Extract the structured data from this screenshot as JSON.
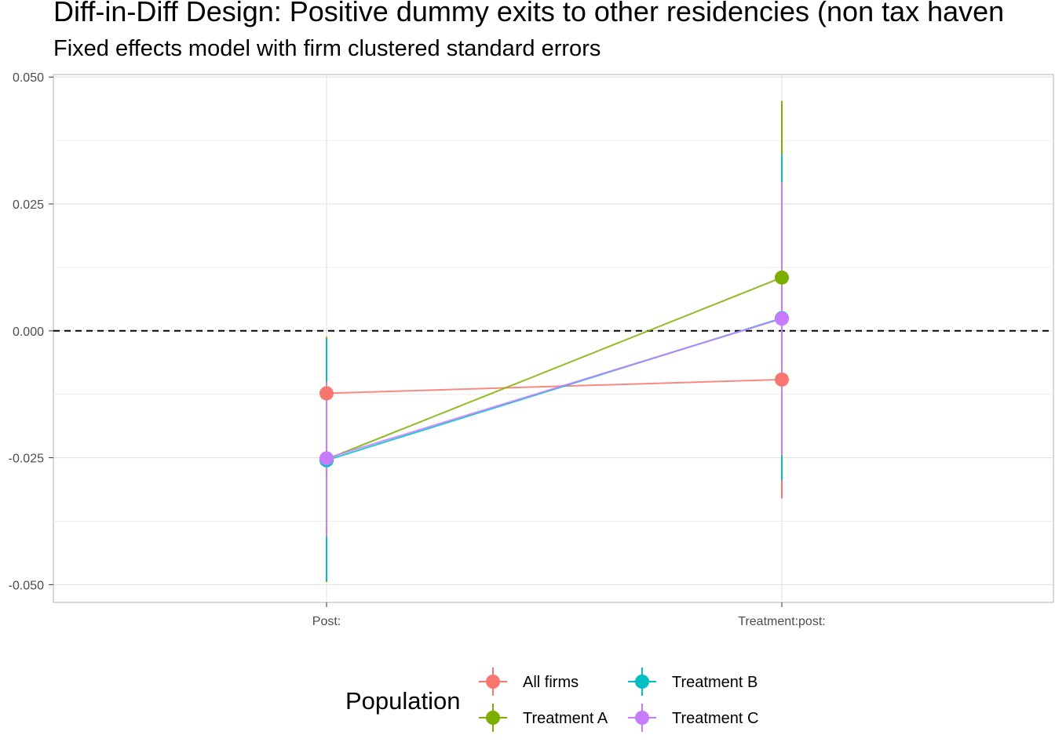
{
  "chart_data": {
    "type": "scatter",
    "title": "Diff-in-Diff Design: Positive dummy exits to other residencies (non tax haven",
    "subtitle": "Fixed effects model with firm clustered standard errors",
    "xlabel": "",
    "ylabel": "",
    "categories": [
      "Post:",
      "Treatment:post:"
    ],
    "ylim": [
      -0.0535,
      0.0505
    ],
    "yticks": [
      0.05,
      0.025,
      0.0,
      -0.025,
      -0.05
    ],
    "ytick_labels": [
      "0.050",
      "0.025",
      "0.000",
      "-0.025",
      "-0.050"
    ],
    "reference_line": {
      "y": 0.0,
      "style": "dashed"
    },
    "grid": true,
    "legend": {
      "title": "Population",
      "position": "bottom"
    },
    "series": [
      {
        "name": "All firms",
        "color": "#F8766D",
        "values": [
          -0.0123,
          -0.0096
        ],
        "lower": [
          -0.0225,
          -0.033
        ],
        "upper": [
          -0.0022,
          0.0138
        ]
      },
      {
        "name": "Treatment A",
        "color": "#7CAE00",
        "values": [
          -0.0253,
          0.0105
        ],
        "lower": [
          -0.0495,
          -0.024
        ],
        "upper": [
          -0.0012,
          0.0453
        ]
      },
      {
        "name": "Treatment B",
        "color": "#00BFC4",
        "values": [
          -0.0255,
          0.0025
        ],
        "lower": [
          -0.0492,
          -0.0295
        ],
        "upper": [
          -0.0016,
          0.0347
        ]
      },
      {
        "name": "Treatment C",
        "color": "#C77CFF",
        "values": [
          -0.0251,
          0.0024
        ],
        "lower": [
          -0.0405,
          -0.0245
        ],
        "upper": [
          -0.01,
          0.0293
        ]
      }
    ]
  }
}
